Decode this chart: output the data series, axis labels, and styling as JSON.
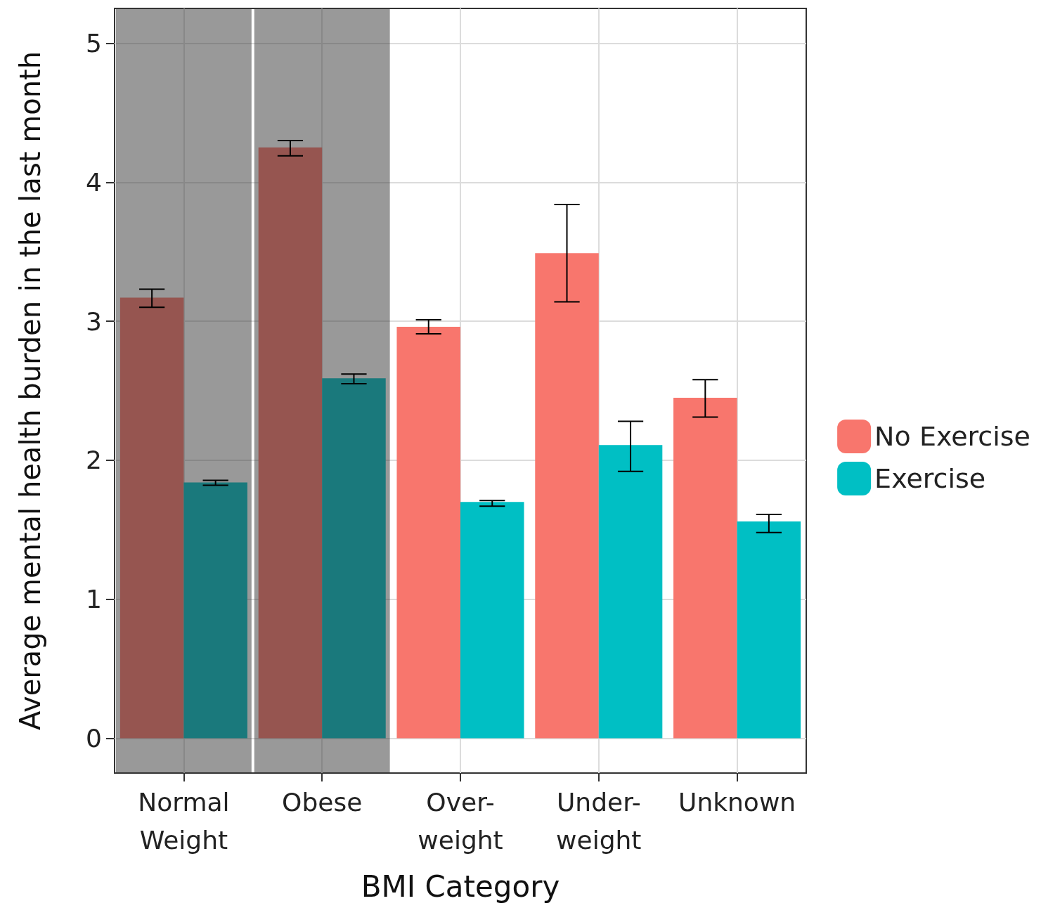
{
  "chart_data": {
    "type": "bar",
    "xlabel": "BMI Category",
    "ylabel": "Average mental health burden in the last month",
    "categories": [
      "Normal Weight",
      "Obese",
      "Over-weight",
      "Under-weight",
      "Unknown"
    ],
    "series": [
      {
        "name": "No Exercise",
        "color": "#f8766d",
        "values": [
          3.17,
          4.25,
          2.96,
          3.49,
          2.45
        ],
        "errors": [
          [
            3.1,
            3.23
          ],
          [
            4.19,
            4.3
          ],
          [
            2.91,
            3.01
          ],
          [
            3.14,
            3.84
          ],
          [
            2.31,
            2.58
          ]
        ]
      },
      {
        "name": "Exercise",
        "color": "#00bfc4",
        "values": [
          1.84,
          2.59,
          1.7,
          2.11,
          1.56
        ],
        "errors": [
          [
            1.82,
            1.855
          ],
          [
            2.55,
            2.62
          ],
          [
            1.67,
            1.71
          ],
          [
            1.92,
            2.28
          ],
          [
            1.48,
            1.61
          ]
        ]
      }
    ],
    "ylim": [
      -0.25,
      5.25
    ],
    "yticks": [
      0,
      1,
      2,
      3,
      4,
      5
    ],
    "bands": [
      {
        "axis": "x",
        "from": "Normal Weight",
        "to": "Normal Weight",
        "color": "#343434"
      },
      {
        "axis": "x",
        "from": "Obese",
        "to": "Obese",
        "color": "#343434"
      }
    ],
    "grid": true,
    "legend": "right"
  }
}
